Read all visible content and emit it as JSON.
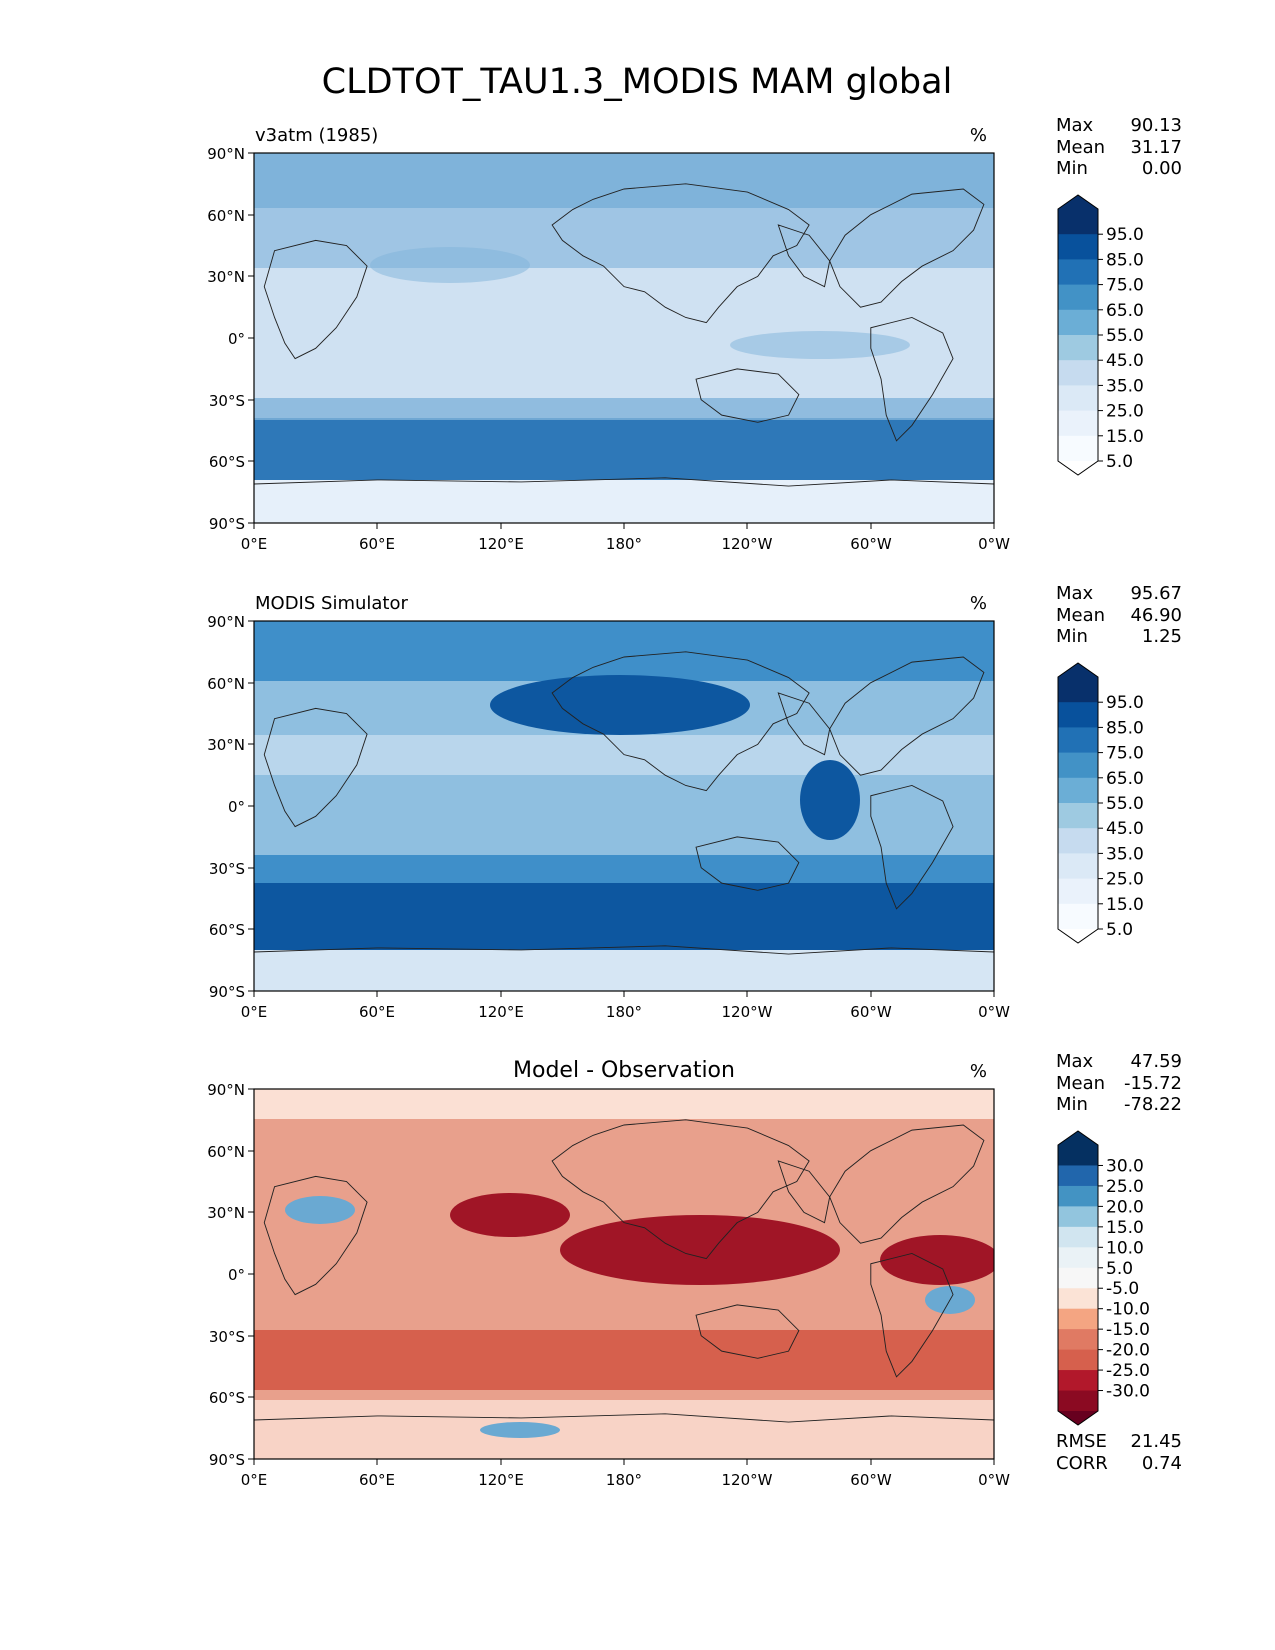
{
  "figure": {
    "title": "CLDTOT_TAU1.3_MODIS MAM global"
  },
  "axes": {
    "lat_ticks": [
      "90°N",
      "60°N",
      "30°N",
      "0°",
      "30°S",
      "60°S",
      "90°S"
    ],
    "lon_ticks": [
      "0°E",
      "60°E",
      "120°E",
      "180°",
      "120°W",
      "60°W",
      "0°W"
    ]
  },
  "panels": [
    {
      "title": "v3atm (1985)",
      "units": "%",
      "stats": [
        {
          "label": "Max",
          "value": "90.13"
        },
        {
          "label": "Mean",
          "value": "31.17"
        },
        {
          "label": "Min",
          "value": "0.00"
        }
      ],
      "colorbar": {
        "labels": [
          "95.0",
          "85.0",
          "75.0",
          "65.0",
          "55.0",
          "45.0",
          "35.0",
          "25.0",
          "15.0",
          "5.0"
        ],
        "colors": [
          "#08306b",
          "#08519c",
          "#2171b5",
          "#4292c6",
          "#6baed6",
          "#9ecae1",
          "#c6dbef",
          "#dbe9f6",
          "#eaf2fb",
          "#f7fbff"
        ],
        "end_colors": [
          "#08306b",
          "#ffffff"
        ]
      },
      "map_colors": {
        "ocean": "#cfe1f2",
        "band_dark": "#2e78b8",
        "band_mid": "#7fb3da",
        "land": "#e6f0fa"
      }
    },
    {
      "title": "MODIS Simulator",
      "units": "%",
      "stats": [
        {
          "label": "Max",
          "value": "95.67"
        },
        {
          "label": "Mean",
          "value": "46.90"
        },
        {
          "label": "Min",
          "value": "1.25"
        }
      ],
      "colorbar": {
        "labels": [
          "95.0",
          "85.0",
          "75.0",
          "65.0",
          "55.0",
          "45.0",
          "35.0",
          "25.0",
          "15.0",
          "5.0"
        ],
        "colors": [
          "#08306b",
          "#08519c",
          "#2171b5",
          "#4292c6",
          "#6baed6",
          "#9ecae1",
          "#c6dbef",
          "#dbe9f6",
          "#eaf2fb",
          "#f7fbff"
        ],
        "end_colors": [
          "#08306b",
          "#ffffff"
        ]
      },
      "map_colors": {
        "ocean": "#8fbfe0",
        "band_dark": "#0d57a0",
        "band_mid": "#3f8fc9",
        "land": "#d6e6f4"
      }
    },
    {
      "title": "Model - Observation",
      "units": "%",
      "stats": [
        {
          "label": "Max",
          "value": "47.59"
        },
        {
          "label": "Mean",
          "value": "-15.72"
        },
        {
          "label": "Min",
          "value": "-78.22"
        }
      ],
      "colorbar": {
        "labels": [
          "30.0",
          "25.0",
          "20.0",
          "15.0",
          "10.0",
          "5.0",
          "-5.0",
          "-10.0",
          "-15.0",
          "-20.0",
          "-25.0",
          "-30.0"
        ],
        "colors": [
          "#053061",
          "#2166ac",
          "#4393c3",
          "#92c5de",
          "#d1e5f0",
          "#eaf2f6",
          "#f7f7f7",
          "#fbe3d6",
          "#f4a582",
          "#e07a63",
          "#d6604d",
          "#b2182b",
          "#8b0a22"
        ],
        "end_colors": [
          "#053061",
          "#67001f"
        ]
      },
      "map_colors": {
        "ocean": "#e8a08c",
        "band_dark": "#a01526",
        "band_mid": "#d6604d",
        "land": "#fbe0d4"
      },
      "extra_stats": [
        {
          "label": "RMSE",
          "value": "21.45"
        },
        {
          "label": "CORR",
          "value": "0.74"
        }
      ]
    }
  ]
}
